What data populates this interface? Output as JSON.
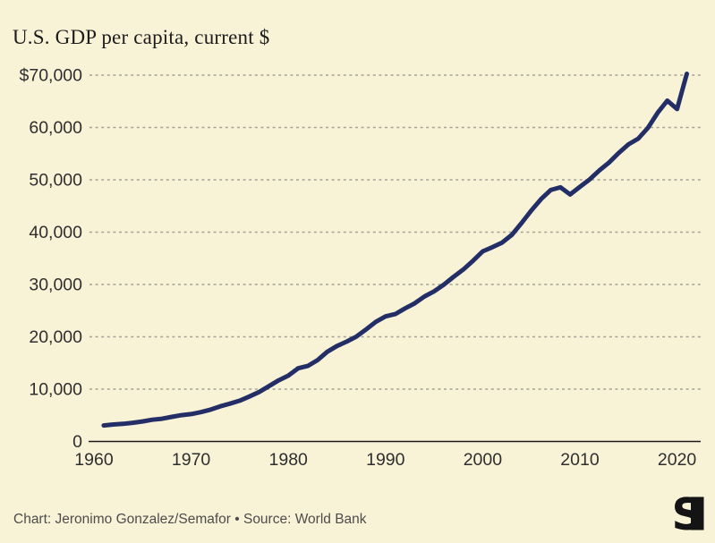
{
  "header": {
    "title": "U.S. GDP per capita, current $"
  },
  "footer": {
    "credit": "Chart: Jeronimo Gonzalez/Semafor • Source: World Bank",
    "logo_letter": "S"
  },
  "colors": {
    "background": "#f8f3d7",
    "line": "#242e66",
    "grid": "#a6a295",
    "axis": "#1a1a1a",
    "title_text": "#1c1c1c",
    "tick_text": "#2e2e2e",
    "credit_text": "#4c4c4c",
    "logo": "#141414"
  },
  "chart_data": {
    "type": "line",
    "title": "U.S. GDP per capita, current $",
    "series_name": "U.S. GDP per capita (current $)",
    "xlabel": "",
    "ylabel": "",
    "grid": "horizontal-dashed",
    "legend": "none",
    "xlim": [
      1960,
      2021.5
    ],
    "ylim": [
      0,
      70000
    ],
    "x_ticks": [
      1960,
      1970,
      1980,
      1990,
      2000,
      2010,
      2020
    ],
    "x_tick_labels": [
      "1960",
      "1970",
      "1980",
      "1990",
      "2000",
      "2010",
      "2020"
    ],
    "y_ticks": [
      0,
      10000,
      20000,
      30000,
      40000,
      50000,
      60000,
      70000
    ],
    "y_tick_labels": [
      "0",
      "10,000",
      "20,000",
      "30,000",
      "40,000",
      "50,000",
      "60,000",
      "$70,000"
    ],
    "x": [
      1961,
      1962,
      1963,
      1964,
      1965,
      1966,
      1967,
      1968,
      1969,
      1970,
      1971,
      1972,
      1973,
      1974,
      1975,
      1976,
      1977,
      1978,
      1979,
      1980,
      1981,
      1982,
      1983,
      1984,
      1985,
      1986,
      1987,
      1988,
      1989,
      1990,
      1991,
      1992,
      1993,
      1994,
      1995,
      1996,
      1997,
      1998,
      1999,
      2000,
      2001,
      2002,
      2003,
      2004,
      2005,
      2006,
      2007,
      2008,
      2009,
      2010,
      2011,
      2012,
      2013,
      2014,
      2015,
      2016,
      2017,
      2018,
      2019,
      2020,
      2021
    ],
    "values": [
      3067,
      3244,
      3375,
      3574,
      3828,
      4146,
      4336,
      4696,
      5032,
      5234,
      5609,
      6094,
      6726,
      7226,
      7801,
      8592,
      9453,
      10565,
      11674,
      12575,
      13976,
      14434,
      15544,
      17121,
      18237,
      19071,
      20039,
      21417,
      22857,
      23889,
      24342,
      25419,
      26387,
      27695,
      28691,
      29968,
      31459,
      32854,
      34515,
      36330,
      37134,
      37998,
      39490,
      41725,
      44123,
      46302,
      48050,
      48570,
      47195,
      48651,
      50066,
      51784,
      53291,
      55124,
      56763,
      57867,
      59915,
      62805,
      65120,
      63528,
      70249
    ]
  }
}
